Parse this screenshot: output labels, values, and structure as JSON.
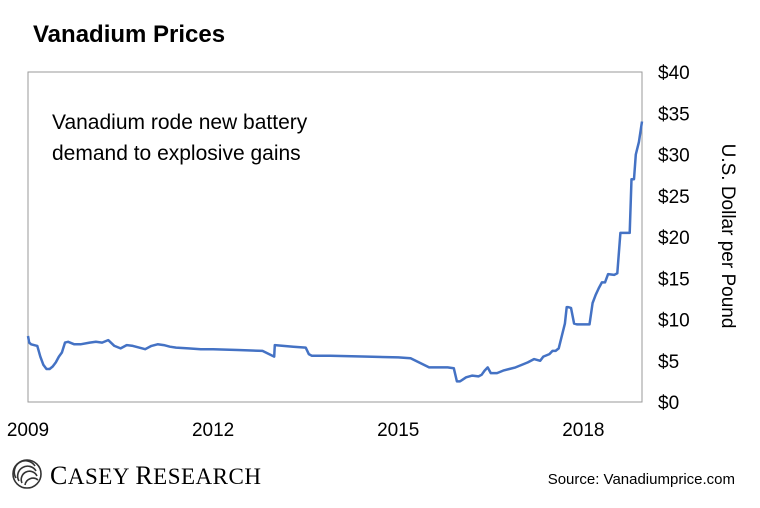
{
  "chart_data": {
    "type": "line",
    "title": "Vanadium Prices",
    "annotation_lines": [
      "Vanadium rode new battery",
      "demand to explosive gains"
    ],
    "ylabel": "U.S. Dollar per Pound",
    "ylim": [
      0,
      40
    ],
    "yticks": [
      0,
      5,
      10,
      15,
      20,
      25,
      30,
      35,
      40
    ],
    "ytick_labels": [
      "$0",
      "$5",
      "$10",
      "$15",
      "$20",
      "$25",
      "$30",
      "$35",
      "$40"
    ],
    "xlim": [
      2009.0,
      2018.95
    ],
    "xticks": [
      2009,
      2012,
      2015,
      2018
    ],
    "xtick_labels": [
      "2009",
      "2012",
      "2015",
      "2018"
    ],
    "grid": false,
    "line_color": "#4472c4",
    "series": [
      {
        "name": "Vanadium price",
        "x": [
          2009.0,
          2009.02,
          2009.05,
          2009.15,
          2009.2,
          2009.25,
          2009.3,
          2009.35,
          2009.4,
          2009.45,
          2009.5,
          2009.55,
          2009.6,
          2009.65,
          2009.75,
          2009.85,
          2010.0,
          2010.1,
          2010.2,
          2010.3,
          2010.4,
          2010.5,
          2010.6,
          2010.7,
          2010.8,
          2010.9,
          2011.0,
          2011.1,
          2011.2,
          2011.3,
          2011.4,
          2011.6,
          2011.8,
          2012.0,
          2012.4,
          2012.8,
          2012.99,
          2013.0,
          2013.3,
          2013.5,
          2013.55,
          2013.6,
          2013.9,
          2014.5,
          2015.0,
          2015.2,
          2015.5,
          2015.8,
          2015.9,
          2015.95,
          2016.0,
          2016.1,
          2016.2,
          2016.3,
          2016.35,
          2016.4,
          2016.45,
          2016.5,
          2016.6,
          2016.7,
          2016.8,
          2016.9,
          2017.0,
          2017.1,
          2017.2,
          2017.3,
          2017.35,
          2017.45,
          2017.5,
          2017.55,
          2017.6,
          2017.7,
          2017.73,
          2017.75,
          2017.8,
          2017.85,
          2017.9,
          2018.0,
          2018.1,
          2018.15,
          2018.2,
          2018.25,
          2018.3,
          2018.35,
          2018.4,
          2018.5,
          2018.55,
          2018.6,
          2018.75,
          2018.78,
          2018.82,
          2018.85,
          2018.9,
          2018.95
        ],
        "y": [
          8.0,
          7.2,
          7.0,
          6.8,
          5.5,
          4.5,
          4.0,
          4.0,
          4.3,
          4.8,
          5.5,
          6.0,
          7.2,
          7.3,
          7.0,
          7.0,
          7.2,
          7.3,
          7.2,
          7.5,
          6.8,
          6.5,
          6.9,
          6.8,
          6.6,
          6.4,
          6.8,
          7.0,
          6.9,
          6.7,
          6.6,
          6.5,
          6.4,
          6.4,
          6.3,
          6.2,
          5.5,
          6.9,
          6.7,
          6.6,
          5.8,
          5.6,
          5.6,
          5.5,
          5.4,
          5.3,
          4.2,
          4.2,
          4.1,
          2.5,
          2.5,
          3.0,
          3.2,
          3.1,
          3.3,
          3.8,
          4.2,
          3.5,
          3.5,
          3.8,
          4.0,
          4.2,
          4.5,
          4.8,
          5.2,
          5.0,
          5.5,
          5.8,
          6.2,
          6.2,
          6.5,
          9.5,
          11.5,
          11.5,
          11.4,
          9.5,
          9.4,
          9.4,
          9.4,
          12.0,
          13.0,
          13.8,
          14.5,
          14.5,
          15.5,
          15.4,
          15.6,
          20.5,
          20.5,
          27.0,
          27.0,
          30.0,
          31.5,
          34.0
        ]
      }
    ]
  },
  "branding": {
    "logo_first_big": "C",
    "logo_first_rest": "ASEY ",
    "logo_second_big": "R",
    "logo_second_rest": "ESEARCH"
  },
  "source_text": "Source: Vanadiumprice.com"
}
